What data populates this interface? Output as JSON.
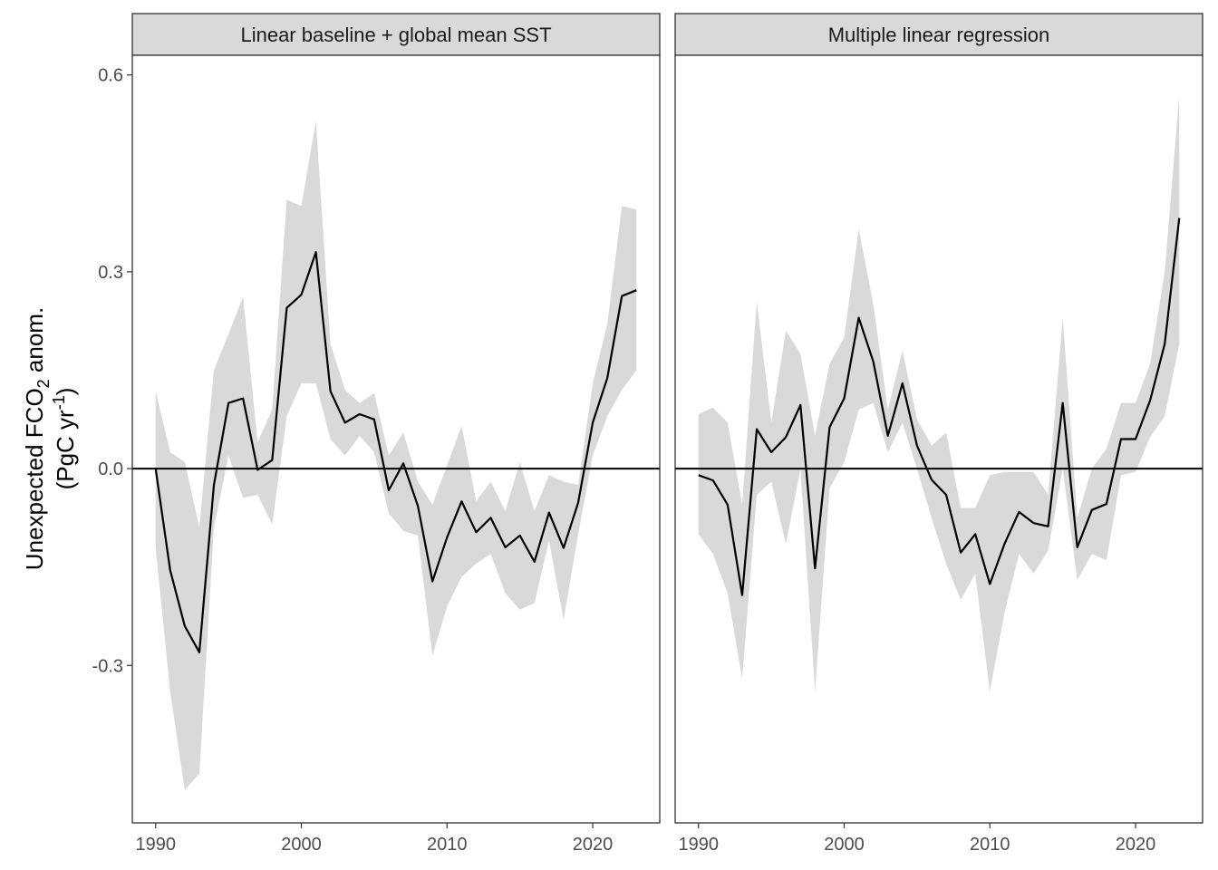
{
  "chart_data": [
    {
      "type": "line",
      "title": "Linear baseline + global mean SST",
      "ylabel": "Unexpected FCO2 anom. (PgC yr-1)",
      "ylim": [
        -0.54,
        0.63
      ],
      "xlim": [
        1988.4,
        2024.6
      ],
      "yticks": [
        "-0.3",
        "0.0",
        "0.3",
        "0.6"
      ],
      "xticks": [
        "1990",
        "2000",
        "2010",
        "2020"
      ],
      "hline": 0,
      "series": [
        {
          "x": [
            1990,
            1991,
            1992,
            1993,
            1994,
            1995,
            1996,
            1997,
            1998,
            1999,
            2000,
            2001,
            2002,
            2003,
            2004,
            2005,
            2006,
            2007,
            2008,
            2009,
            2010,
            2011,
            2012,
            2013,
            2014,
            2015,
            2016,
            2017,
            2018,
            2019,
            2020,
            2021,
            2022,
            2023
          ],
          "y": [
            0.0,
            -0.155,
            -0.24,
            -0.28,
            -0.025,
            0.1,
            0.107,
            -0.002,
            0.013,
            0.245,
            0.265,
            0.33,
            0.118,
            0.07,
            0.083,
            0.075,
            -0.033,
            0.008,
            -0.057,
            -0.172,
            -0.105,
            -0.05,
            -0.097,
            -0.075,
            -0.12,
            -0.102,
            -0.142,
            -0.067,
            -0.121,
            -0.052,
            0.07,
            0.138,
            0.263,
            0.272
          ],
          "lower": [
            -0.12,
            -0.34,
            -0.49,
            -0.465,
            -0.09,
            0.02,
            -0.045,
            -0.04,
            -0.085,
            0.08,
            0.13,
            0.13,
            0.045,
            0.02,
            0.05,
            0.025,
            -0.068,
            -0.095,
            -0.102,
            -0.285,
            -0.21,
            -0.165,
            -0.145,
            -0.13,
            -0.19,
            -0.215,
            -0.205,
            -0.11,
            -0.23,
            -0.1,
            0.02,
            0.08,
            0.12,
            0.15
          ],
          "upper": [
            0.118,
            0.025,
            0.01,
            -0.09,
            0.15,
            0.205,
            0.262,
            0.04,
            0.09,
            0.41,
            0.4,
            0.53,
            0.19,
            0.12,
            0.1,
            0.115,
            0.02,
            0.055,
            -0.02,
            -0.055,
            0.005,
            0.065,
            -0.05,
            -0.02,
            -0.065,
            0.01,
            -0.065,
            -0.01,
            -0.02,
            -0.025,
            0.13,
            0.22,
            0.4,
            0.395
          ]
        }
      ]
    },
    {
      "type": "line",
      "title": "Multiple linear regression",
      "ylabel": "Unexpected FCO2 anom. (PgC yr-1)",
      "ylim": [
        -0.54,
        0.63
      ],
      "xlim": [
        1988.4,
        2024.6
      ],
      "yticks": [
        "-0.3",
        "0.0",
        "0.3",
        "0.6"
      ],
      "xticks": [
        "1990",
        "2000",
        "2010",
        "2020"
      ],
      "hline": 0,
      "series": [
        {
          "x": [
            1990,
            1991,
            1992,
            1993,
            1994,
            1995,
            1996,
            1997,
            1998,
            1999,
            2000,
            2001,
            2002,
            2003,
            2004,
            2005,
            2006,
            2007,
            2008,
            2009,
            2010,
            2011,
            2012,
            2013,
            2014,
            2015,
            2016,
            2017,
            2018,
            2019,
            2020,
            2021,
            2022,
            2023
          ],
          "y": [
            -0.01,
            -0.018,
            -0.055,
            -0.193,
            0.06,
            0.025,
            0.048,
            0.097,
            -0.152,
            0.063,
            0.107,
            0.23,
            0.163,
            0.05,
            0.13,
            0.035,
            -0.017,
            -0.04,
            -0.128,
            -0.1,
            -0.176,
            -0.115,
            -0.066,
            -0.083,
            -0.088,
            0.1,
            -0.12,
            -0.063,
            -0.054,
            0.045,
            0.045,
            0.104,
            0.19,
            0.382
          ],
          "lower": [
            -0.1,
            -0.13,
            -0.19,
            -0.32,
            -0.04,
            -0.02,
            -0.115,
            0.0,
            -0.34,
            -0.03,
            0.01,
            0.09,
            0.1,
            0.025,
            0.07,
            0.0,
            -0.075,
            -0.145,
            -0.2,
            -0.16,
            -0.34,
            -0.22,
            -0.13,
            -0.16,
            -0.125,
            0.0,
            -0.17,
            -0.13,
            -0.14,
            -0.01,
            -0.005,
            0.048,
            0.08,
            0.19
          ],
          "upper": [
            0.083,
            0.093,
            0.07,
            -0.055,
            0.255,
            0.07,
            0.21,
            0.175,
            0.05,
            0.16,
            0.2,
            0.365,
            0.25,
            0.09,
            0.18,
            0.075,
            0.035,
            0.055,
            -0.06,
            -0.06,
            -0.01,
            -0.005,
            -0.005,
            -0.005,
            -0.04,
            0.23,
            -0.075,
            0.0,
            0.03,
            0.1,
            0.1,
            0.16,
            0.3,
            0.57
          ]
        }
      ]
    }
  ]
}
